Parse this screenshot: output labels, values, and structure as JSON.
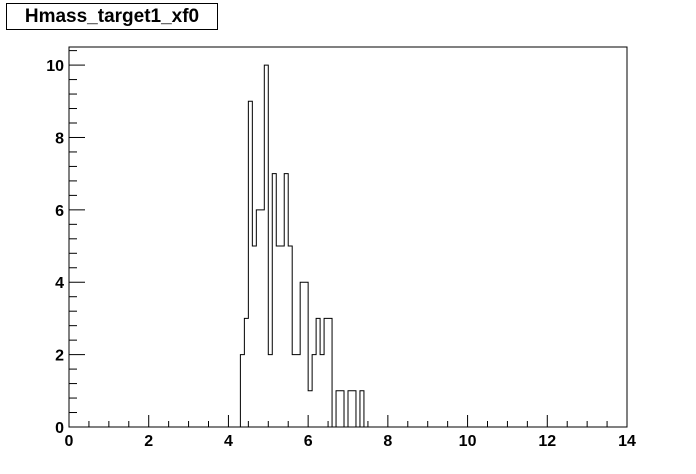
{
  "chart_data": {
    "type": "histogram",
    "title": "Hmass_target1_xf0",
    "xlabel": "",
    "ylabel": "",
    "xlim": [
      0,
      14
    ],
    "ylim": [
      0,
      10.5
    ],
    "bin_width": 0.1,
    "x_ticks": [
      0,
      2,
      4,
      6,
      8,
      10,
      12,
      14
    ],
    "y_ticks": [
      0,
      2,
      4,
      6,
      8,
      10
    ],
    "bins": [
      {
        "x0": 4.3,
        "value": 2
      },
      {
        "x0": 4.4,
        "value": 3
      },
      {
        "x0": 4.5,
        "value": 9
      },
      {
        "x0": 4.6,
        "value": 5
      },
      {
        "x0": 4.7,
        "value": 6
      },
      {
        "x0": 4.8,
        "value": 6
      },
      {
        "x0": 4.9,
        "value": 10
      },
      {
        "x0": 5.0,
        "value": 2
      },
      {
        "x0": 5.1,
        "value": 7
      },
      {
        "x0": 5.2,
        "value": 5
      },
      {
        "x0": 5.3,
        "value": 5
      },
      {
        "x0": 5.4,
        "value": 7
      },
      {
        "x0": 5.5,
        "value": 5
      },
      {
        "x0": 5.6,
        "value": 2
      },
      {
        "x0": 5.7,
        "value": 2
      },
      {
        "x0": 5.8,
        "value": 4
      },
      {
        "x0": 5.9,
        "value": 4
      },
      {
        "x0": 6.0,
        "value": 1
      },
      {
        "x0": 6.1,
        "value": 2
      },
      {
        "x0": 6.2,
        "value": 3
      },
      {
        "x0": 6.3,
        "value": 2
      },
      {
        "x0": 6.4,
        "value": 3
      },
      {
        "x0": 6.5,
        "value": 3
      },
      {
        "x0": 6.6,
        "value": 0
      },
      {
        "x0": 6.7,
        "value": 1
      },
      {
        "x0": 6.8,
        "value": 1
      },
      {
        "x0": 6.9,
        "value": 0
      },
      {
        "x0": 7.0,
        "value": 1
      },
      {
        "x0": 7.1,
        "value": 1
      },
      {
        "x0": 7.2,
        "value": 0
      },
      {
        "x0": 7.3,
        "value": 1
      }
    ],
    "grid": false,
    "legend": "none"
  }
}
